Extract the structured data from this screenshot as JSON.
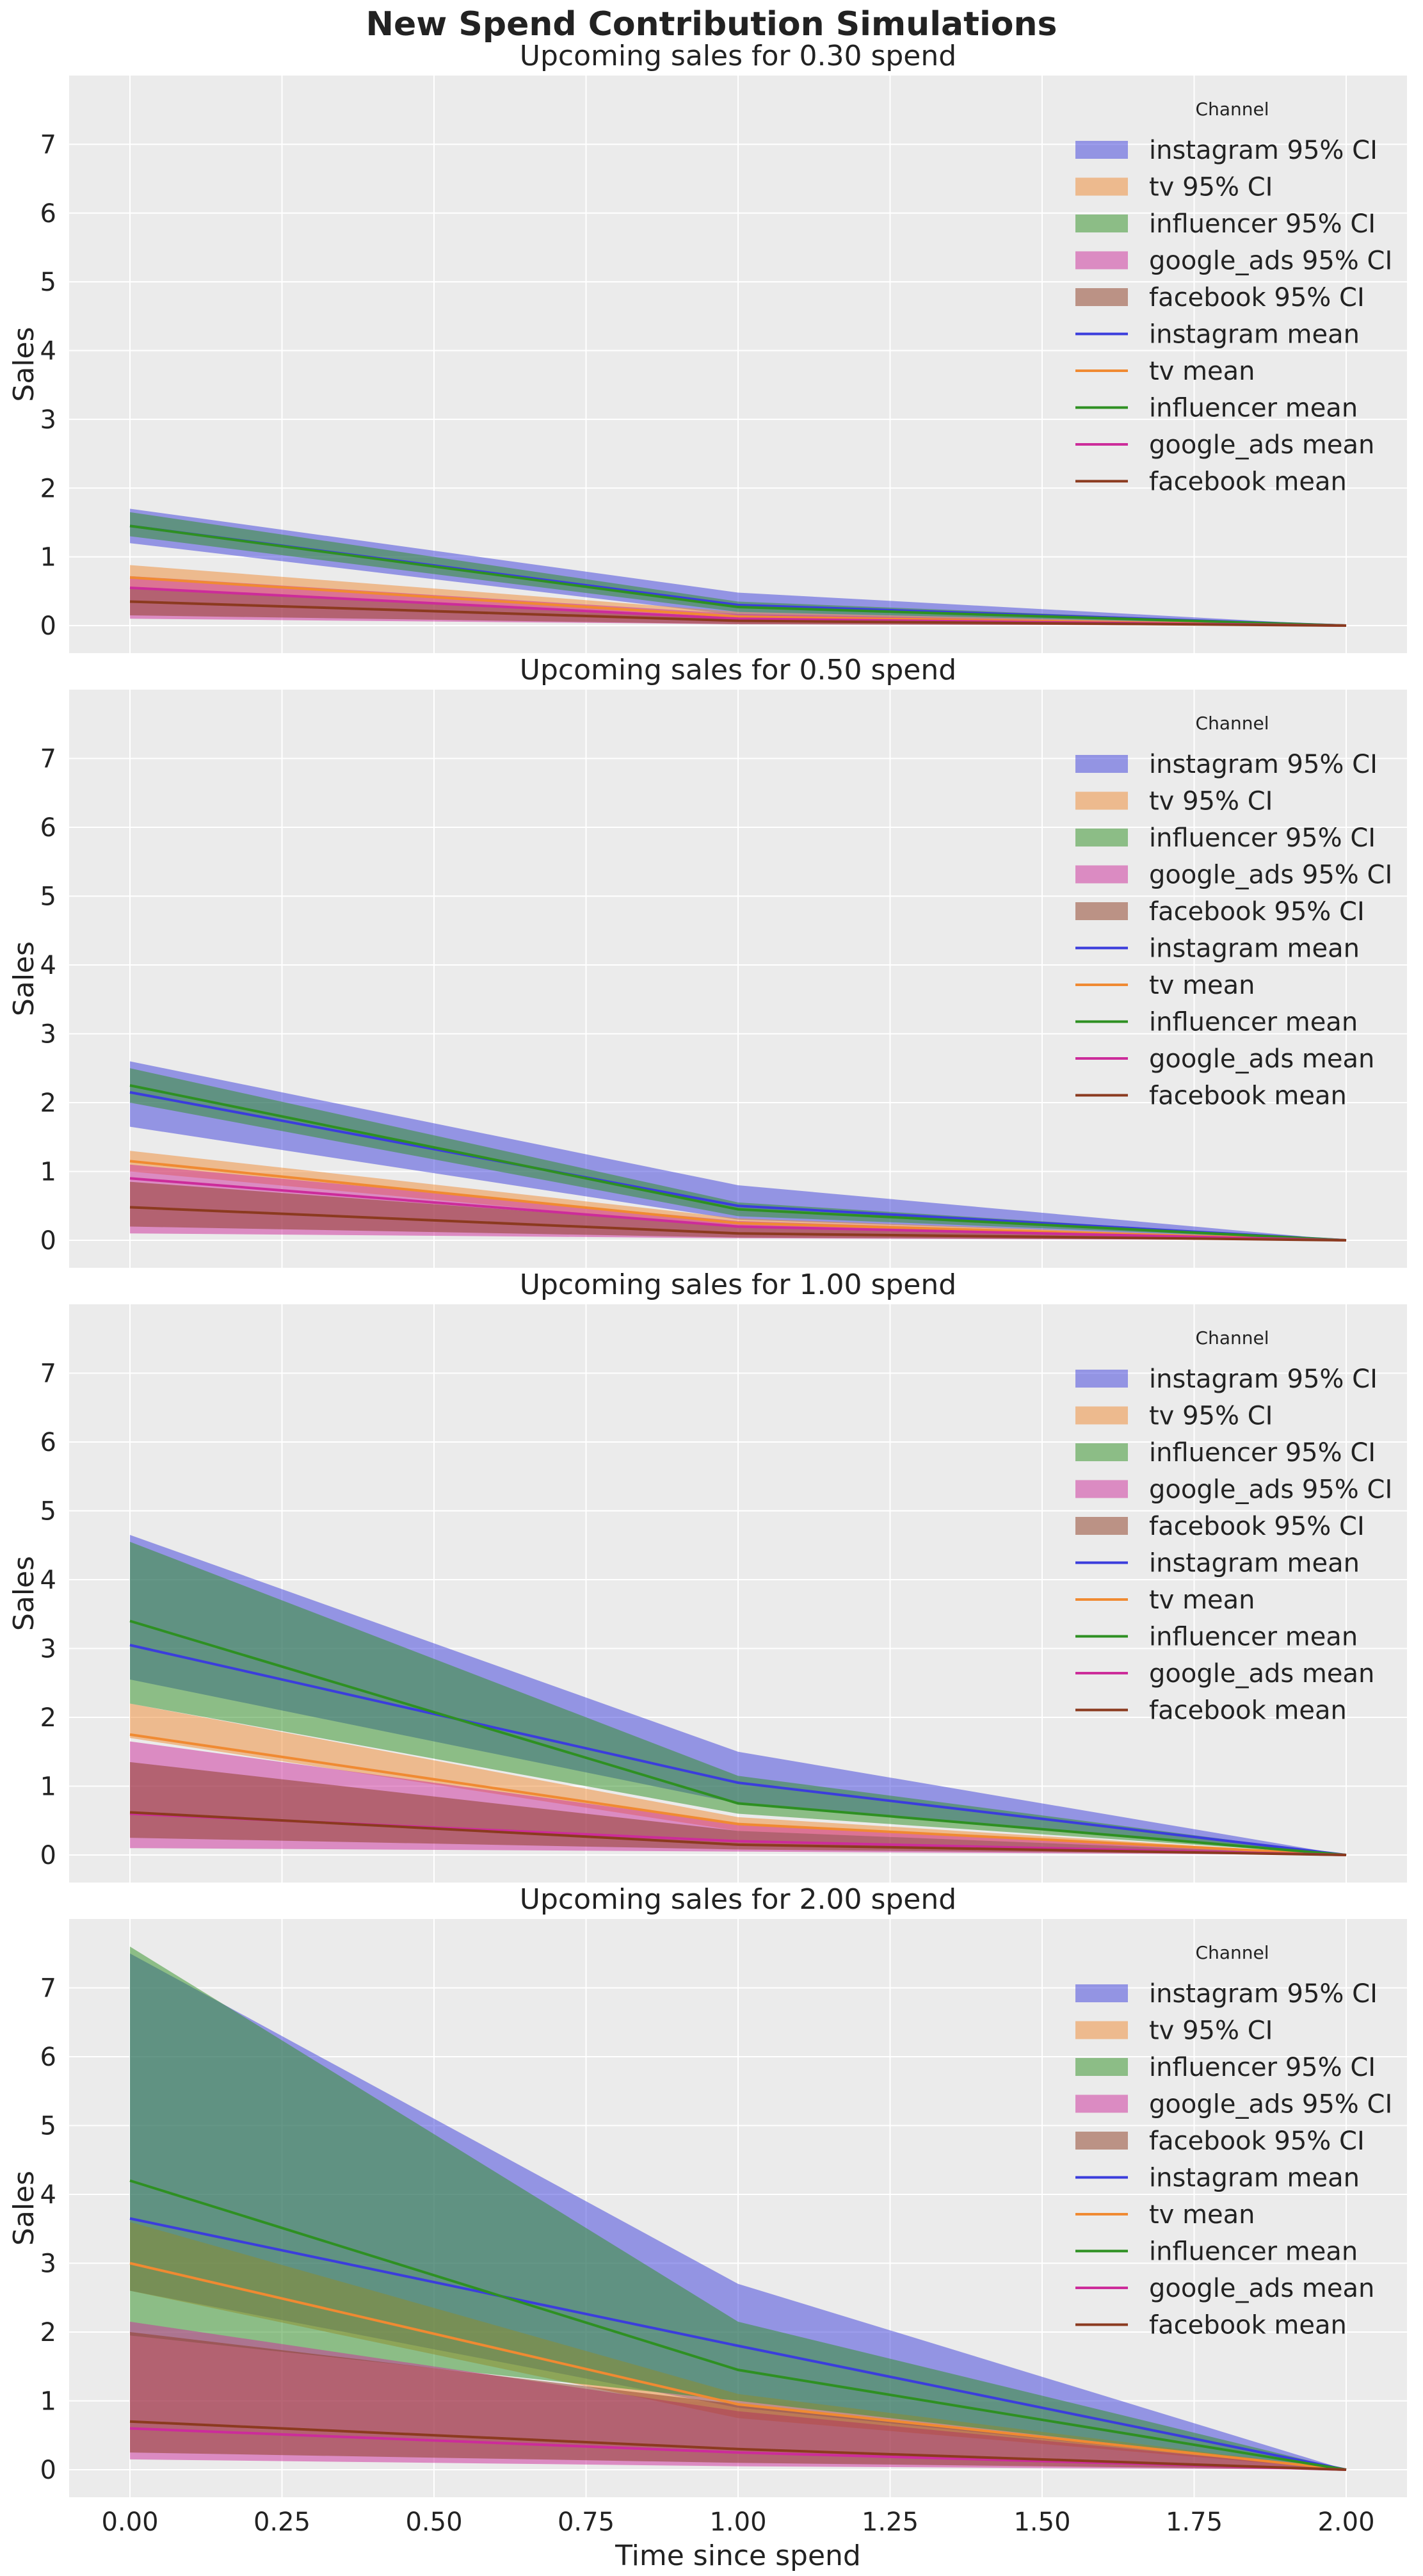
{
  "figure": {
    "suptitle": "New Spend Contribution Simulations",
    "xlabel": "Time since spend",
    "ylabel": "Sales",
    "legend_title": "Channel"
  },
  "colors": {
    "instagram": "#3b3ddc",
    "tv": "#f08a32",
    "influencer": "#2e9022",
    "google_ads": "#cc2c9a",
    "facebook": "#8b3a1f",
    "axes_bg": "#ebebeb",
    "grid": "#ffffff"
  },
  "chart_data": [
    {
      "type": "area",
      "title": "Upcoming sales for 0.30 spend",
      "xlabel": "",
      "ylabel": "Sales",
      "x": [
        0,
        1,
        2
      ],
      "xlim": [
        -0.1,
        2.1
      ],
      "ylim": [
        -0.4,
        8.0
      ],
      "xticks": [
        0.0,
        0.25,
        0.5,
        0.75,
        1.0,
        1.25,
        1.5,
        1.75,
        2.0
      ],
      "xticklabels": [
        "0.00",
        "0.25",
        "0.50",
        "0.75",
        "1.00",
        "1.25",
        "1.50",
        "1.75",
        "2.00"
      ],
      "yticks": [
        0,
        1,
        2,
        3,
        4,
        5,
        6,
        7
      ],
      "grid": true,
      "legend": "top-right",
      "series": [
        {
          "name": "instagram",
          "mean": [
            1.45,
            0.3,
            0.0
          ],
          "lower": [
            1.2,
            0.15,
            0.0
          ],
          "upper": [
            1.7,
            0.48,
            0.0
          ]
        },
        {
          "name": "tv",
          "mean": [
            0.7,
            0.13,
            0.0
          ],
          "lower": [
            0.55,
            0.08,
            0.0
          ],
          "upper": [
            0.88,
            0.2,
            0.0
          ]
        },
        {
          "name": "influencer",
          "mean": [
            1.45,
            0.27,
            0.0
          ],
          "lower": [
            1.3,
            0.2,
            0.0
          ],
          "upper": [
            1.65,
            0.35,
            0.0
          ]
        },
        {
          "name": "google_ads",
          "mean": [
            0.55,
            0.1,
            0.0
          ],
          "lower": [
            0.1,
            0.02,
            0.0
          ],
          "upper": [
            0.72,
            0.17,
            0.0
          ]
        },
        {
          "name": "facebook",
          "mean": [
            0.35,
            0.07,
            0.0
          ],
          "lower": [
            0.15,
            0.02,
            0.0
          ],
          "upper": [
            0.55,
            0.12,
            0.0
          ]
        }
      ],
      "legend_labels": [
        "instagram 95% CI",
        "tv 95% CI",
        "influencer 95% CI",
        "google_ads 95% CI",
        "facebook 95% CI",
        "instagram mean",
        "tv mean",
        "influencer mean",
        "google_ads mean",
        "facebook mean"
      ]
    },
    {
      "type": "area",
      "title": "Upcoming sales for 0.50 spend",
      "xlabel": "",
      "ylabel": "Sales",
      "x": [
        0,
        1,
        2
      ],
      "xlim": [
        -0.1,
        2.1
      ],
      "ylim": [
        -0.4,
        8.0
      ],
      "xticks": [
        0.0,
        0.25,
        0.5,
        0.75,
        1.0,
        1.25,
        1.5,
        1.75,
        2.0
      ],
      "xticklabels": [
        "0.00",
        "0.25",
        "0.50",
        "0.75",
        "1.00",
        "1.25",
        "1.50",
        "1.75",
        "2.00"
      ],
      "yticks": [
        0,
        1,
        2,
        3,
        4,
        5,
        6,
        7
      ],
      "grid": true,
      "legend": "top-right",
      "series": [
        {
          "name": "instagram",
          "mean": [
            2.15,
            0.5,
            0.0
          ],
          "lower": [
            1.65,
            0.3,
            0.0
          ],
          "upper": [
            2.6,
            0.8,
            0.0
          ]
        },
        {
          "name": "tv",
          "mean": [
            1.15,
            0.25,
            0.0
          ],
          "lower": [
            1.0,
            0.18,
            0.0
          ],
          "upper": [
            1.3,
            0.32,
            0.0
          ]
        },
        {
          "name": "influencer",
          "mean": [
            2.25,
            0.45,
            0.0
          ],
          "lower": [
            2.0,
            0.35,
            0.0
          ],
          "upper": [
            2.5,
            0.55,
            0.0
          ]
        },
        {
          "name": "google_ads",
          "mean": [
            0.9,
            0.2,
            0.0
          ],
          "lower": [
            0.1,
            0.03,
            0.0
          ],
          "upper": [
            1.1,
            0.28,
            0.0
          ]
        },
        {
          "name": "facebook",
          "mean": [
            0.48,
            0.1,
            0.0
          ],
          "lower": [
            0.2,
            0.04,
            0.0
          ],
          "upper": [
            0.85,
            0.2,
            0.0
          ]
        }
      ],
      "legend_labels": [
        "instagram 95% CI",
        "tv 95% CI",
        "influencer 95% CI",
        "google_ads 95% CI",
        "facebook 95% CI",
        "instagram mean",
        "tv mean",
        "influencer mean",
        "google_ads mean",
        "facebook mean"
      ]
    },
    {
      "type": "area",
      "title": "Upcoming sales for 1.00 spend",
      "xlabel": "",
      "ylabel": "Sales",
      "x": [
        0,
        1,
        2
      ],
      "xlim": [
        -0.1,
        2.1
      ],
      "ylim": [
        -0.4,
        8.0
      ],
      "xticks": [
        0.0,
        0.25,
        0.5,
        0.75,
        1.0,
        1.25,
        1.5,
        1.75,
        2.0
      ],
      "xticklabels": [
        "0.00",
        "0.25",
        "0.50",
        "0.75",
        "1.00",
        "1.25",
        "1.50",
        "1.75",
        "2.00"
      ],
      "yticks": [
        0,
        1,
        2,
        3,
        4,
        5,
        6,
        7
      ],
      "grid": true,
      "legend": "top-right",
      "series": [
        {
          "name": "instagram",
          "mean": [
            3.05,
            1.05,
            0.0
          ],
          "lower": [
            2.55,
            0.75,
            0.0
          ],
          "upper": [
            4.65,
            1.5,
            0.0
          ]
        },
        {
          "name": "tv",
          "mean": [
            1.75,
            0.45,
            0.0
          ],
          "lower": [
            1.7,
            0.35,
            0.0
          ],
          "upper": [
            2.2,
            0.55,
            0.0
          ]
        },
        {
          "name": "influencer",
          "mean": [
            3.4,
            0.75,
            0.0
          ],
          "lower": [
            2.2,
            0.6,
            0.0
          ],
          "upper": [
            4.55,
            1.15,
            0.0
          ]
        },
        {
          "name": "google_ads",
          "mean": [
            0.6,
            0.2,
            0.0
          ],
          "lower": [
            0.1,
            0.05,
            0.0
          ],
          "upper": [
            1.65,
            0.45,
            0.0
          ]
        },
        {
          "name": "facebook",
          "mean": [
            0.62,
            0.15,
            0.0
          ],
          "lower": [
            0.25,
            0.08,
            0.0
          ],
          "upper": [
            1.35,
            0.35,
            0.0
          ]
        }
      ],
      "legend_labels": [
        "instagram 95% CI",
        "tv 95% CI",
        "influencer 95% CI",
        "google_ads 95% CI",
        "facebook 95% CI",
        "instagram mean",
        "tv mean",
        "influencer mean",
        "google_ads mean",
        "facebook mean"
      ]
    },
    {
      "type": "area",
      "title": "Upcoming sales for 2.00 spend",
      "xlabel": "Time since spend",
      "ylabel": "Sales",
      "x": [
        0,
        1,
        2
      ],
      "xlim": [
        -0.1,
        2.1
      ],
      "ylim": [
        -0.4,
        8.0
      ],
      "xticks": [
        0.0,
        0.25,
        0.5,
        0.75,
        1.0,
        1.25,
        1.5,
        1.75,
        2.0
      ],
      "xticklabels": [
        "0.00",
        "0.25",
        "0.50",
        "0.75",
        "1.00",
        "1.25",
        "1.50",
        "1.75",
        "2.00"
      ],
      "yticks": [
        0,
        1,
        2,
        3,
        4,
        5,
        6,
        7
      ],
      "grid": true,
      "legend": "top-right",
      "series": [
        {
          "name": "instagram",
          "mean": [
            3.65,
            1.8,
            0.0
          ],
          "lower": [
            2.6,
            0.9,
            0.0
          ],
          "upper": [
            7.5,
            2.7,
            0.0
          ]
        },
        {
          "name": "tv",
          "mean": [
            3.0,
            0.95,
            0.0
          ],
          "lower": [
            2.6,
            0.75,
            0.0
          ],
          "upper": [
            3.6,
            1.1,
            0.0
          ]
        },
        {
          "name": "influencer",
          "mean": [
            4.2,
            1.45,
            0.0
          ],
          "lower": [
            1.95,
            1.0,
            0.0
          ],
          "upper": [
            7.6,
            2.15,
            0.0
          ]
        },
        {
          "name": "google_ads",
          "mean": [
            0.6,
            0.25,
            0.0
          ],
          "lower": [
            0.15,
            0.05,
            0.0
          ],
          "upper": [
            2.15,
            0.85,
            0.0
          ]
        },
        {
          "name": "facebook",
          "mean": [
            0.7,
            0.3,
            0.0
          ],
          "lower": [
            0.25,
            0.1,
            0.0
          ],
          "upper": [
            2.0,
            0.95,
            0.0
          ]
        }
      ],
      "legend_labels": [
        "instagram 95% CI",
        "tv 95% CI",
        "influencer 95% CI",
        "google_ads 95% CI",
        "facebook 95% CI",
        "instagram mean",
        "tv mean",
        "influencer mean",
        "google_ads mean",
        "facebook mean"
      ]
    }
  ]
}
